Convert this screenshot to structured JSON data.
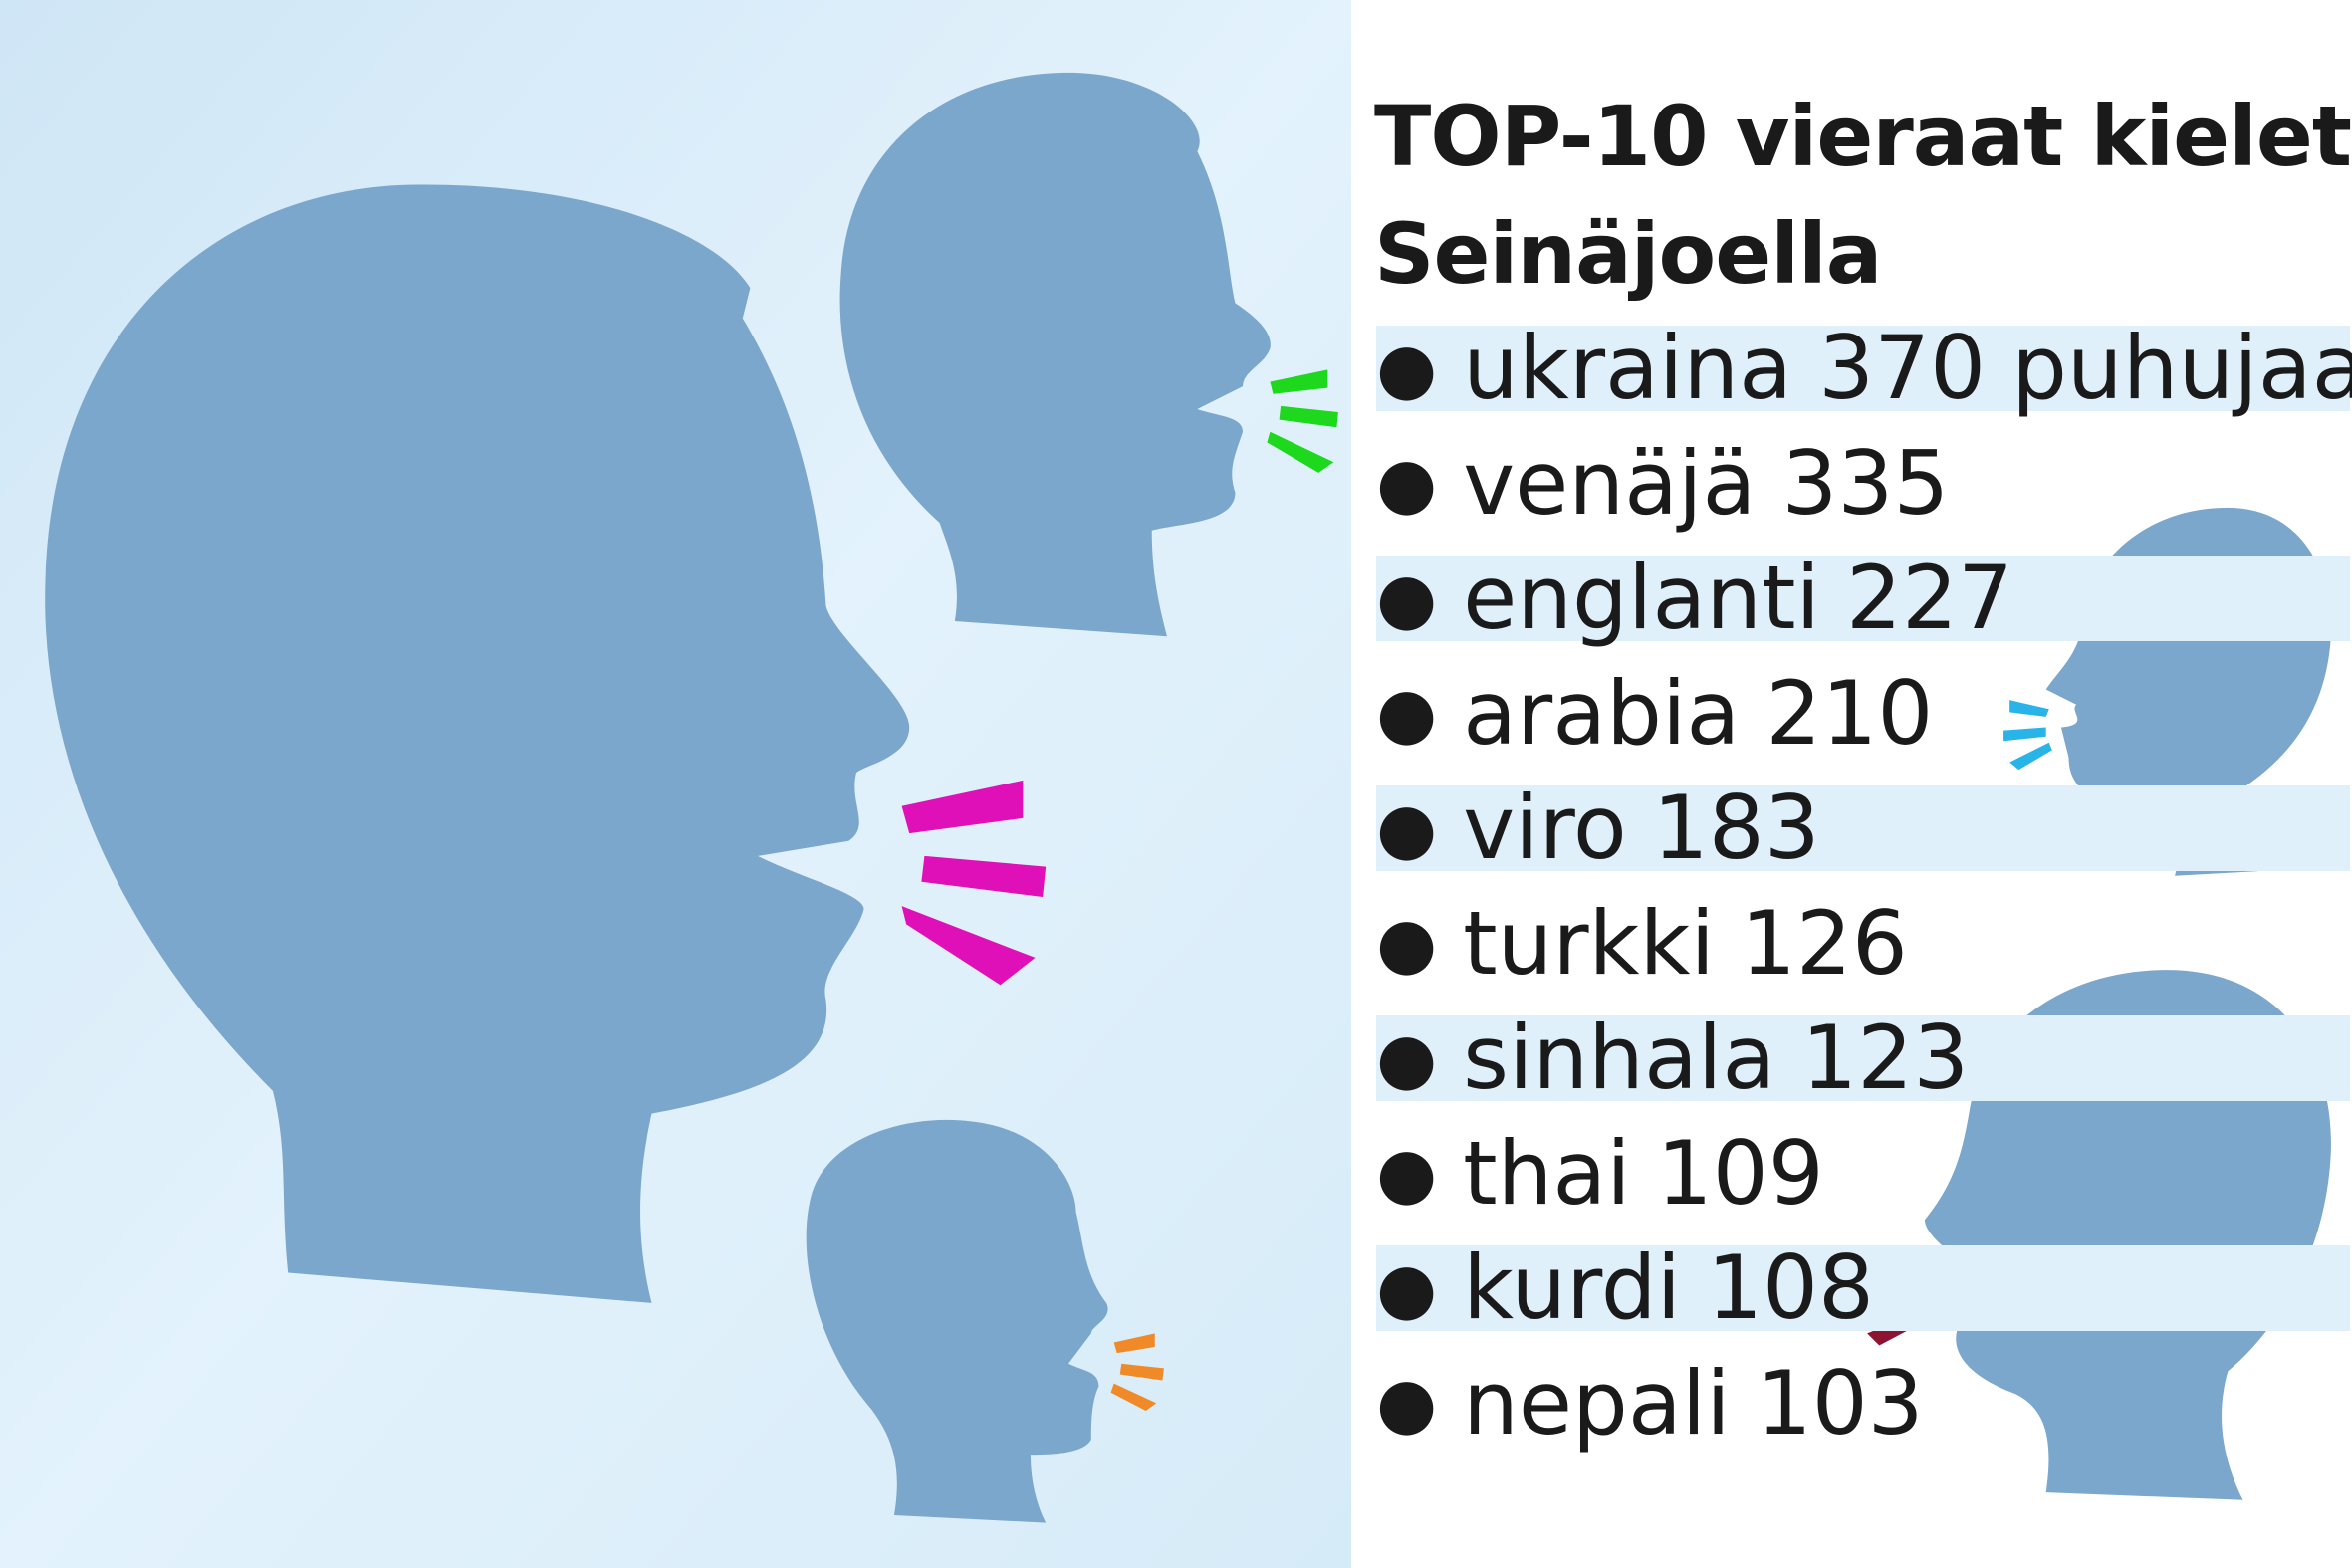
{
  "title": {
    "line1": "TOP-10 vieraat kielet",
    "line2": "Seinäjoella"
  },
  "items": [
    {
      "language": "ukraina",
      "count": "370",
      "unit": "puhujaa"
    },
    {
      "language": "venäjä",
      "count": "335"
    },
    {
      "language": "englanti",
      "count": "227"
    },
    {
      "language": "arabia",
      "count": "210"
    },
    {
      "language": "viro",
      "count": "183"
    },
    {
      "language": "turkki",
      "count": "126"
    },
    {
      "language": "sinhala",
      "count": "123"
    },
    {
      "language": "thai",
      "count": "109"
    },
    {
      "language": "kurdi",
      "count": "108"
    },
    {
      "language": "nepali",
      "count": "103"
    }
  ],
  "colors": {
    "background_panel": "#d6ebf8",
    "head": "#7ba7cc",
    "stripe": "#dff0fb",
    "accent_magenta": "#e010b8",
    "accent_green": "#1ed81e",
    "accent_blue": "#28b4e8",
    "accent_orange": "#f08a28",
    "accent_darkred": "#8c1430"
  },
  "icons": [
    "speaking-head-large",
    "speaking-head-top",
    "speaking-head-small",
    "speaking-head-right-middle",
    "speaking-head-right-bottom"
  ]
}
